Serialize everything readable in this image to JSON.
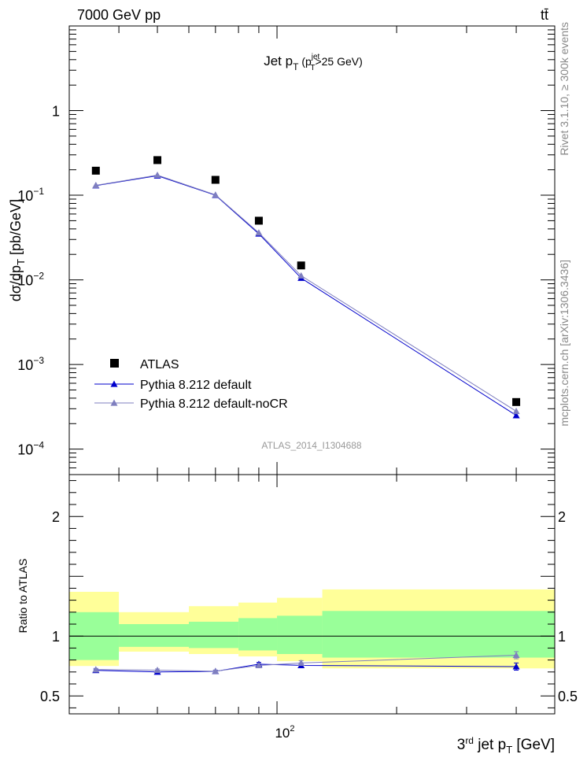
{
  "header": {
    "energy": "7000 GeV pp",
    "process": "tt̄"
  },
  "side_labels": {
    "rivet": "Rivet 3.1.10, ≥ 300k events",
    "mcplots": "mcplots.cern.ch [arXiv:1306.3436]"
  },
  "chart_data": {
    "type": "line",
    "title_main": "Jet p",
    "title_sub": "T",
    "title_cut": "(p",
    "title_cut_sup": "jet",
    "title_cut_sub": "T",
    "title_cut_rest": ">25 GeV)",
    "watermark": "ATLAS_2014_I1304688",
    "xscale": "log",
    "xlim": [
      30,
      500
    ],
    "x_tick_label": "10",
    "x_tick_label_exp": "2",
    "xlabel_pre": "3",
    "xlabel_sup": "rd",
    "xlabel_mid": " jet p",
    "xlabel_sub": "T",
    "xlabel_post": " [GeV]",
    "main": {
      "yscale": "log",
      "ylim": [
        5e-05,
        10
      ],
      "ylabel_pre": "dσ/dp",
      "ylabel_sub": "T",
      "ylabel_post": " [pb/GeV]",
      "y_ticks": [
        {
          "value": 1,
          "label": "1",
          "exp": ""
        },
        {
          "value": 0.1,
          "label": "10",
          "exp": "−1"
        },
        {
          "value": 0.01,
          "label": "10",
          "exp": "−2"
        },
        {
          "value": 0.001,
          "label": "10",
          "exp": "−3"
        },
        {
          "value": 0.0001,
          "label": "10",
          "exp": "−4"
        }
      ],
      "x": [
        35,
        50,
        70,
        90,
        115,
        400
      ],
      "series": [
        {
          "name": "ATLAS",
          "marker": "square",
          "color": "#000000",
          "values": [
            0.195,
            0.26,
            0.152,
            0.05,
            0.0148,
            0.00036
          ]
        },
        {
          "name": "Pythia 8.212 default",
          "marker": "triangle",
          "color": "#0000cc",
          "values": [
            0.13,
            0.17,
            0.1,
            0.035,
            0.0105,
            0.00025
          ]
        },
        {
          "name": "Pythia 8.212 default-noCR",
          "marker": "triangle",
          "color": "#7f7fbf",
          "values": [
            0.131,
            0.173,
            0.101,
            0.036,
            0.0112,
            0.00028
          ]
        }
      ]
    },
    "ratio": {
      "ylabel": "Ratio to ATLAS",
      "ylim": [
        0.35,
        2.35
      ],
      "y_ticks": [
        {
          "value": 0.5,
          "label": "0.5"
        },
        {
          "value": 1,
          "label": "1"
        },
        {
          "value": 2,
          "label": "2"
        }
      ],
      "bins": [
        30,
        40,
        60,
        80,
        100,
        130,
        500
      ],
      "band_yellow": [
        [
          0.75,
          1.37
        ],
        [
          0.87,
          1.2
        ],
        [
          0.85,
          1.25
        ],
        [
          0.83,
          1.28
        ],
        [
          0.79,
          1.32
        ],
        [
          0.73,
          1.39
        ]
      ],
      "band_green": [
        [
          0.8,
          1.2
        ],
        [
          0.91,
          1.1
        ],
        [
          0.9,
          1.12
        ],
        [
          0.88,
          1.15
        ],
        [
          0.85,
          1.17
        ],
        [
          0.82,
          1.21
        ]
      ],
      "series": [
        {
          "name": "Pythia 8.212 default",
          "color": "#0000cc",
          "values": [
            0.714,
            0.7,
            0.705,
            0.765,
            0.755,
            0.745
          ],
          "errors": [
            0.01,
            0.01,
            0.01,
            0.015,
            0.02,
            0.03
          ]
        },
        {
          "name": "Pythia 8.212 default-noCR",
          "color": "#7f7fbf",
          "values": [
            0.72,
            0.715,
            0.706,
            0.755,
            0.775,
            0.84
          ],
          "errors": [
            0.01,
            0.01,
            0.01,
            0.015,
            0.02,
            0.03
          ]
        }
      ]
    }
  }
}
